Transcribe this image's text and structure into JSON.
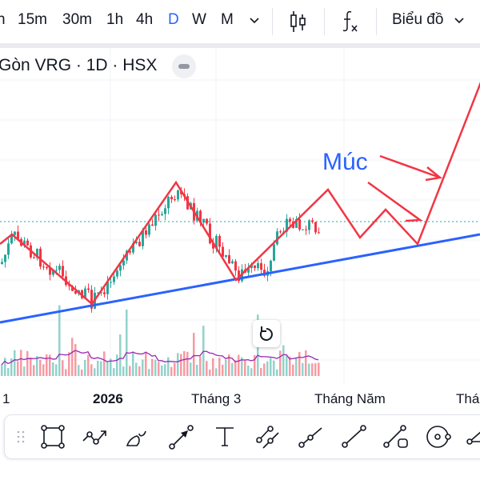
{
  "toolbar": {
    "intervals": [
      "h",
      "15m",
      "30m",
      "1h",
      "4h",
      "D",
      "W",
      "M"
    ],
    "active_interval": "D",
    "more_icon": "chevron-down-icon",
    "chart_type_icon": "candlestick-icon",
    "indicators_icon": "fx-icon",
    "chart_menu_label": "Biểu đồ"
  },
  "legend": {
    "title": "Gòn VRG · 1D · HSX"
  },
  "annotations": {
    "text_label": "Múc"
  },
  "time_axis": {
    "labels": [
      "1",
      "2026",
      "Tháng 3",
      "Tháng Năm",
      "Thá"
    ]
  },
  "drawing_tools": [
    "rectangle",
    "path",
    "brush",
    "arrow",
    "text",
    "parallel-channel",
    "trend-angle",
    "trend-line",
    "info-line",
    "circle",
    "fib"
  ],
  "colors": {
    "up": "#26a69a",
    "down": "#f23645",
    "drawing": "#f23645",
    "trendline": "#2962ff",
    "accent": "#2962ff",
    "volume_ma": "#9c27b0"
  }
}
